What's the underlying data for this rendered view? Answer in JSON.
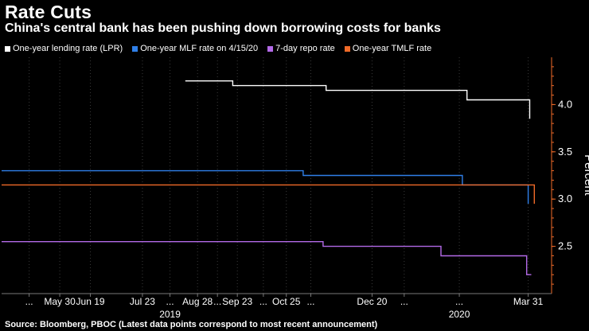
{
  "title": "Rate Cuts",
  "subtitle": "China's central bank has been pushing down borrowing costs for banks",
  "source": "Source: Bloomberg, PBOC (Latest data points correspond to most recent announcement)",
  "legend": [
    {
      "label": "One-year lending rate (LPR)",
      "color": "#ffffff"
    },
    {
      "label": "One-year MLF rate on 4/15/20",
      "color": "#2f7fe8"
    },
    {
      "label": "7-day repo rate",
      "color": "#b36ae8"
    },
    {
      "label": "One-year TMLF rate",
      "color": "#f06a28"
    }
  ],
  "chart_data": {
    "type": "line",
    "title": "Rate Cuts",
    "subtitle": "China's central bank has been pushing down borrowing costs for banks",
    "ylabel": "Percent",
    "xlabel": "",
    "ylim": [
      2.0,
      4.5
    ],
    "xlim": [
      "2019-04-22",
      "2020-04-08"
    ],
    "y_ticks": [
      2.5,
      3.0,
      3.5,
      4.0
    ],
    "x_ticks": [
      {
        "label": "...",
        "date": "2019-05-10"
      },
      {
        "label": "May 30",
        "date": "2019-05-30"
      },
      {
        "label": "Jun 19",
        "date": "2019-06-19"
      },
      {
        "label": "Jul 23",
        "date": "2019-07-23"
      },
      {
        "label": "...",
        "date": "2019-08-10"
      },
      {
        "label": "Aug 28",
        "date": "2019-08-28"
      },
      {
        "label": "...",
        "date": "2019-09-10"
      },
      {
        "label": "Sep 23",
        "date": "2019-09-23"
      },
      {
        "label": "...",
        "date": "2019-10-10"
      },
      {
        "label": "Oct 25",
        "date": "2019-10-25"
      },
      {
        "label": "...",
        "date": "2019-11-10"
      },
      {
        "label": "Dec 20",
        "date": "2019-12-20"
      },
      {
        "label": "...",
        "date": "2020-01-10"
      },
      {
        "label": "...",
        "date": "2020-02-15"
      },
      {
        "label": "Mar 31",
        "date": "2020-03-31"
      }
    ],
    "year_labels": [
      {
        "label": "2019",
        "date": "2019-08-10"
      },
      {
        "label": "2020",
        "date": "2020-02-15"
      }
    ],
    "series": [
      {
        "name": "One-year lending rate (LPR)",
        "color": "#ffffff",
        "points": [
          [
            "2019-08-20",
            4.25
          ],
          [
            "2019-09-20",
            4.25
          ],
          [
            "2019-09-20",
            4.2
          ],
          [
            "2019-11-20",
            4.2
          ],
          [
            "2019-11-20",
            4.15
          ],
          [
            "2020-02-20",
            4.15
          ],
          [
            "2020-02-20",
            4.05
          ],
          [
            "2020-04-01",
            4.05
          ],
          [
            "2020-04-01",
            3.85
          ]
        ]
      },
      {
        "name": "One-year MLF rate on 4/15/20",
        "color": "#2f7fe8",
        "points": [
          [
            "2019-04-22",
            3.3
          ],
          [
            "2019-11-05",
            3.3
          ],
          [
            "2019-11-05",
            3.25
          ],
          [
            "2020-02-17",
            3.25
          ],
          [
            "2020-02-17",
            3.15
          ],
          [
            "2020-03-31",
            3.15
          ],
          [
            "2020-03-31",
            2.95
          ]
        ]
      },
      {
        "name": "7-day repo rate",
        "color": "#b36ae8",
        "points": [
          [
            "2019-04-22",
            2.55
          ],
          [
            "2019-11-18",
            2.55
          ],
          [
            "2019-11-18",
            2.5
          ],
          [
            "2020-02-03",
            2.5
          ],
          [
            "2020-02-03",
            2.4
          ],
          [
            "2020-03-30",
            2.4
          ],
          [
            "2020-03-30",
            2.2
          ],
          [
            "2020-04-02",
            2.2
          ]
        ]
      },
      {
        "name": "One-year TMLF rate",
        "color": "#f06a28",
        "points": [
          [
            "2019-04-22",
            3.15
          ],
          [
            "2020-04-04",
            3.15
          ],
          [
            "2020-04-04",
            2.95
          ]
        ]
      }
    ]
  }
}
